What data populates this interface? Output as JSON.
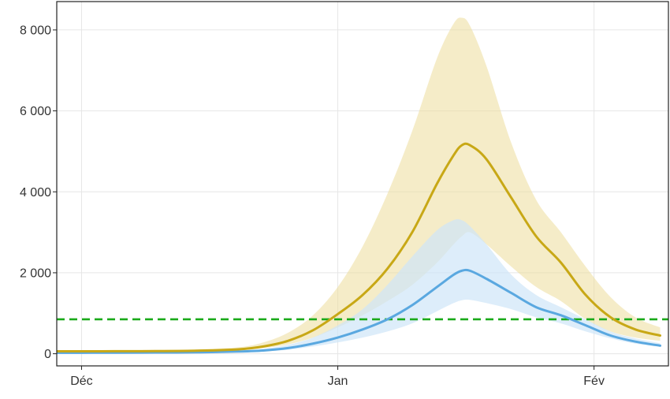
{
  "chart_data": {
    "type": "area",
    "title": "",
    "xlabel": "",
    "ylabel": "",
    "x_ticks": [
      {
        "label": "Déc",
        "day": 1
      },
      {
        "label": "Jan",
        "day": 32
      },
      {
        "label": "Fév",
        "day": 63
      }
    ],
    "y_ticks": [
      {
        "label": "0",
        "value": 0
      },
      {
        "label": "2 000",
        "value": 2000
      },
      {
        "label": "4 000",
        "value": 4000
      },
      {
        "label": "6 000",
        "value": 6000
      },
      {
        "label": "8 000",
        "value": 8000
      }
    ],
    "xlim": [
      -2,
      72
    ],
    "ylim": [
      -300,
      8700
    ],
    "grid": true,
    "threshold": {
      "value": 850,
      "color": "#1aaa1a",
      "style": "dashed"
    },
    "x": [
      -3,
      1,
      5,
      10,
      15,
      20,
      23,
      26,
      29,
      32,
      35,
      38,
      41,
      44,
      46,
      47,
      48,
      50,
      53,
      56,
      59,
      62,
      65,
      68,
      71
    ],
    "series": [
      {
        "color": "#c8a816",
        "band_color": "#ecdd9a",
        "band_opacity": 0.55,
        "values": [
          60,
          60,
          62,
          65,
          75,
          110,
          180,
          320,
          580,
          980,
          1450,
          2100,
          3000,
          4200,
          4900,
          5150,
          5150,
          4800,
          3850,
          2900,
          2250,
          1450,
          900,
          600,
          450
        ],
        "lower": [
          50,
          50,
          52,
          55,
          65,
          90,
          140,
          230,
          400,
          650,
          950,
          1300,
          1700,
          2250,
          2700,
          2900,
          3000,
          2700,
          2150,
          1650,
          1300,
          850,
          550,
          400,
          320
        ],
        "upper": [
          80,
          80,
          85,
          95,
          110,
          160,
          280,
          520,
          950,
          1650,
          2650,
          3950,
          5500,
          7300,
          8150,
          8300,
          8100,
          7100,
          5200,
          3800,
          3000,
          2150,
          1400,
          900,
          650
        ]
      },
      {
        "color": "#5aa8e0",
        "band_color": "#cfe5f8",
        "band_opacity": 0.7,
        "values": [
          25,
          25,
          27,
          30,
          35,
          55,
          80,
          140,
          250,
          400,
          600,
          850,
          1200,
          1650,
          1950,
          2050,
          2050,
          1850,
          1500,
          1150,
          950,
          700,
          450,
          300,
          200
        ],
        "lower": [
          15,
          15,
          17,
          20,
          25,
          40,
          60,
          100,
          180,
          280,
          400,
          550,
          750,
          1050,
          1250,
          1320,
          1330,
          1250,
          1100,
          900,
          750,
          550,
          380,
          250,
          170
        ],
        "upper": [
          35,
          35,
          38,
          42,
          50,
          75,
          120,
          220,
          400,
          700,
          1100,
          1700,
          2400,
          3050,
          3300,
          3300,
          3150,
          2700,
          1950,
          1450,
          1150,
          850,
          550,
          380,
          260
        ]
      }
    ]
  }
}
